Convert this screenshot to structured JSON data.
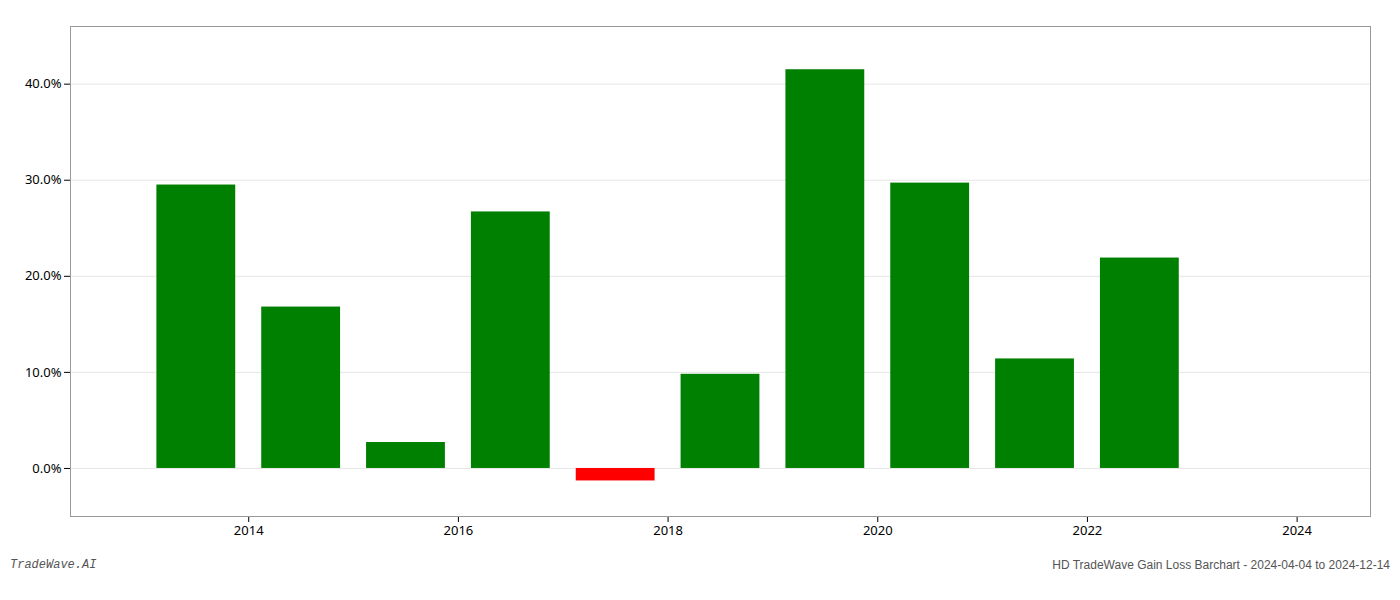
{
  "chart_data": {
    "type": "bar",
    "x": [
      2013,
      2014,
      2015,
      2016,
      2017,
      2018,
      2019,
      2020,
      2021,
      2022,
      2023
    ],
    "values": [
      0.295,
      0.168,
      0.027,
      0.267,
      -0.013,
      0.098,
      0.415,
      0.297,
      0.114,
      0.219,
      0.0
    ],
    "colors": [
      "#008000",
      "#008000",
      "#008000",
      "#008000",
      "#ff0000",
      "#008000",
      "#008000",
      "#008000",
      "#008000",
      "#008000",
      "#008000"
    ],
    "xlim": [
      2012.3,
      2024.7
    ],
    "xticks": [
      2014,
      2016,
      2018,
      2020,
      2022,
      2024
    ],
    "ylim": [
      -0.05,
      0.46
    ],
    "yticks": [
      {
        "value": 0.0,
        "label": "0.0%"
      },
      {
        "value": 0.1,
        "label": "10.0%"
      },
      {
        "value": 0.2,
        "label": "20.0%"
      },
      {
        "value": 0.3,
        "label": "30.0%"
      },
      {
        "value": 0.4,
        "label": "40.0%"
      }
    ],
    "grid": true,
    "annotations": [
      "TradeWave.AI",
      "HD TradeWave Gain Loss Barchart - 2024-04-04 to 2024-12-14"
    ]
  }
}
